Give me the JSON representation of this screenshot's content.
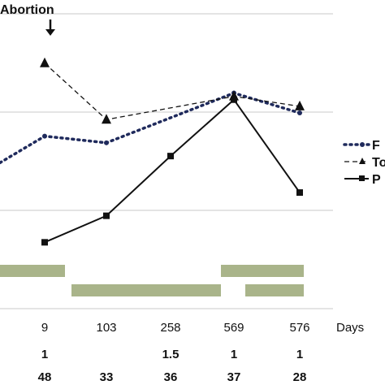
{
  "chart_data": {
    "type": "line",
    "annotation": "Abortion",
    "annotation_x": 9,
    "x_label": "Days",
    "categories": [
      "9",
      "103",
      "258",
      "569",
      "576"
    ],
    "row1": [
      "1",
      "",
      "1.5",
      "1",
      "1"
    ],
    "row2": [
      "48",
      "33",
      "36",
      "37",
      "28"
    ],
    "ylim": [
      0,
      4
    ],
    "grid": true,
    "legend_position": "right",
    "series": [
      {
        "name": "F",
        "style": "dotted",
        "marker": "circle",
        "x": [
          null,
          "9",
          "103",
          "569",
          "576"
        ],
        "values": [
          2.2,
          2.6,
          2.5,
          3.25,
          2.95
        ],
        "x_extend": true
      },
      {
        "name": "To",
        "style": "dashed",
        "marker": "triangle",
        "x": [
          "9",
          "103",
          "569",
          "576"
        ],
        "values": [
          3.7,
          2.85,
          3.2,
          3.05
        ]
      },
      {
        "name": "P",
        "style": "solid",
        "marker": "square",
        "x": [
          "9",
          "103",
          "258",
          "569",
          "576"
        ],
        "values": [
          1.0,
          1.4,
          2.3,
          3.15,
          1.75
        ]
      }
    ],
    "bars": [
      {
        "row": 1,
        "from": "start",
        "to": "9"
      },
      {
        "row": 2,
        "from": "9",
        "to": "569"
      },
      {
        "row": 1,
        "from": "569",
        "to": "576"
      },
      {
        "row": 2,
        "from": "569",
        "to": "576"
      }
    ],
    "colors": {
      "line": "#111111",
      "grid": "#c8c8c8",
      "bar": "#a9b48a",
      "series_f": "#1f2a5c"
    }
  }
}
